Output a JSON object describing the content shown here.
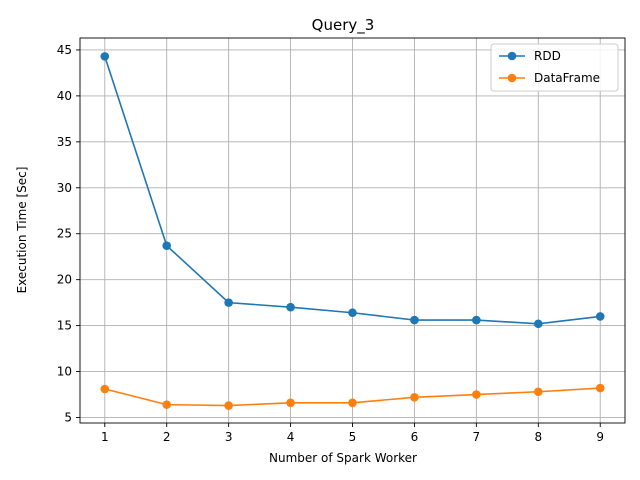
{
  "chart_data": {
    "type": "line",
    "title": "Query_3",
    "xlabel": "Number of Spark Worker",
    "ylabel": "Execution Time [Sec]",
    "x": [
      1,
      2,
      3,
      4,
      5,
      6,
      7,
      8,
      9
    ],
    "xticks": [
      1,
      2,
      3,
      4,
      5,
      6,
      7,
      8,
      9
    ],
    "yticks": [
      5,
      10,
      15,
      20,
      25,
      30,
      35,
      40,
      45
    ],
    "xlim": [
      0.6,
      9.4
    ],
    "ylim": [
      4.4,
      46.3
    ],
    "grid": true,
    "legend_position": "top-right",
    "series": [
      {
        "name": "RDD",
        "color": "#1f77b4",
        "marker": "circle",
        "values": [
          44.3,
          23.7,
          17.5,
          17.0,
          16.4,
          15.6,
          15.6,
          15.2,
          16.0
        ]
      },
      {
        "name": "DataFrame",
        "color": "#ff7f0e",
        "marker": "circle",
        "values": [
          8.1,
          6.4,
          6.3,
          6.6,
          6.6,
          7.2,
          7.5,
          7.8,
          8.2
        ]
      }
    ]
  }
}
